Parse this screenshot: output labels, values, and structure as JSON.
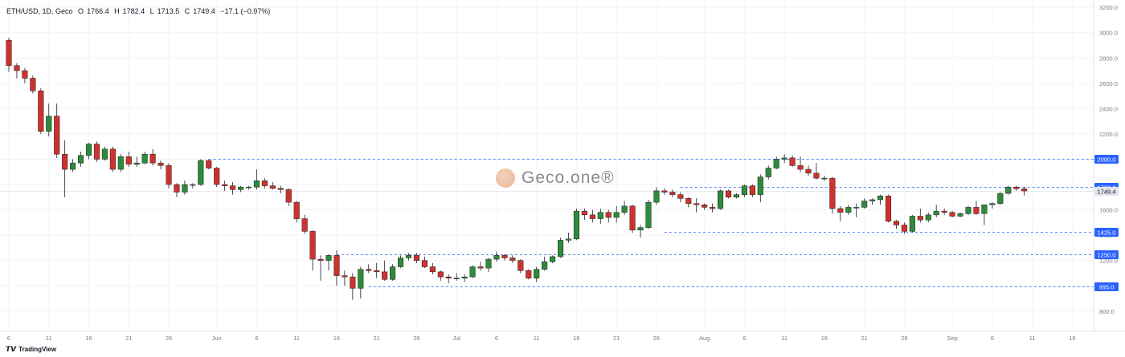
{
  "header": {
    "symbol": "ETH/USD, 1D, Geco",
    "o_label": "O",
    "o": "1766.4",
    "h_label": "H",
    "h": "1782.4",
    "l_label": "L",
    "l": "1713.5",
    "c_label": "C",
    "c": "1749.4",
    "change": "−17.1 (−0.97%)"
  },
  "watermark": {
    "text": "Geco.one®"
  },
  "footer": {
    "brand": "TradingView",
    "brand_icon": "tradingview-logo-icon"
  },
  "colors": {
    "up": "#2e8b3a",
    "down": "#d0312d",
    "level_line": "#2962ff",
    "last_price_bg": "#e0e3eb"
  },
  "chart_data": {
    "type": "candlestick",
    "title": "",
    "ylim": [
      640,
      3220
    ],
    "y_ticks": [
      800,
      1000,
      1200,
      1400,
      1600,
      1800,
      2000,
      2200,
      2400,
      2600,
      2800,
      3000,
      3200
    ],
    "y_tick_labels": [
      "800.0",
      "1000.0",
      "1200.0",
      "1400.0",
      "1600.0",
      "1800.0",
      "2000.0",
      "2200.0",
      "2400.0",
      "2600.0",
      "2800.0",
      "3000.0",
      "3200.0"
    ],
    "x_tick_labels": [
      {
        "label": "6",
        "i": 0
      },
      {
        "label": "11",
        "i": 5
      },
      {
        "label": "16",
        "i": 10
      },
      {
        "label": "21",
        "i": 15
      },
      {
        "label": "26",
        "i": 20
      },
      {
        "label": "Jun",
        "i": 26
      },
      {
        "label": "6",
        "i": 31
      },
      {
        "label": "11",
        "i": 36
      },
      {
        "label": "16",
        "i": 41
      },
      {
        "label": "21",
        "i": 46
      },
      {
        "label": "26",
        "i": 51
      },
      {
        "label": "Jul",
        "i": 56
      },
      {
        "label": "6",
        "i": 61
      },
      {
        "label": "11",
        "i": 66
      },
      {
        "label": "16",
        "i": 71
      },
      {
        "label": "21",
        "i": 76
      },
      {
        "label": "26",
        "i": 81
      },
      {
        "label": "Aug",
        "i": 87
      },
      {
        "label": "6",
        "i": 92
      },
      {
        "label": "11",
        "i": 97
      },
      {
        "label": "16",
        "i": 102
      },
      {
        "label": "21",
        "i": 107
      },
      {
        "label": "26",
        "i": 112
      },
      {
        "label": "Sep",
        "i": 118
      },
      {
        "label": "6",
        "i": 123
      },
      {
        "label": "11",
        "i": 128
      },
      {
        "label": "16",
        "i": 133
      }
    ],
    "levels": [
      {
        "value": 2000.0,
        "label": "2000.0",
        "start_i": 25
      },
      {
        "value": 1780.0,
        "label": "1780.0",
        "start_i": 84
      },
      {
        "value": 1425.0,
        "label": "1425.0",
        "start_i": 82
      },
      {
        "value": 1250.0,
        "label": "1250.0",
        "start_i": 41
      },
      {
        "value": 995.0,
        "label": "995.0",
        "start_i": 45
      }
    ],
    "last_price": {
      "value": 1749.4,
      "label": "1749.4"
    },
    "candles": [
      {
        "o": 2940,
        "h": 2960,
        "l": 2690,
        "c": 2740
      },
      {
        "o": 2740,
        "h": 2760,
        "l": 2640,
        "c": 2700
      },
      {
        "o": 2700,
        "h": 2720,
        "l": 2600,
        "c": 2640
      },
      {
        "o": 2640,
        "h": 2660,
        "l": 2520,
        "c": 2540
      },
      {
        "o": 2540,
        "h": 2560,
        "l": 2200,
        "c": 2220
      },
      {
        "o": 2220,
        "h": 2440,
        "l": 2180,
        "c": 2340
      },
      {
        "o": 2340,
        "h": 2440,
        "l": 2010,
        "c": 2040
      },
      {
        "o": 2040,
        "h": 2150,
        "l": 1700,
        "c": 1920
      },
      {
        "o": 1920,
        "h": 2000,
        "l": 1900,
        "c": 1970
      },
      {
        "o": 1970,
        "h": 2060,
        "l": 1940,
        "c": 2030
      },
      {
        "o": 2030,
        "h": 2130,
        "l": 2000,
        "c": 2120
      },
      {
        "o": 2120,
        "h": 2140,
        "l": 1980,
        "c": 2000
      },
      {
        "o": 2000,
        "h": 2100,
        "l": 1990,
        "c": 2080
      },
      {
        "o": 2080,
        "h": 2100,
        "l": 1900,
        "c": 1920
      },
      {
        "o": 1920,
        "h": 2040,
        "l": 1900,
        "c": 2020
      },
      {
        "o": 2020,
        "h": 2060,
        "l": 1940,
        "c": 1960
      },
      {
        "o": 1960,
        "h": 2020,
        "l": 1940,
        "c": 1970
      },
      {
        "o": 1970,
        "h": 2060,
        "l": 1960,
        "c": 2040
      },
      {
        "o": 2040,
        "h": 2080,
        "l": 1950,
        "c": 1970
      },
      {
        "o": 1970,
        "h": 1990,
        "l": 1920,
        "c": 1950
      },
      {
        "o": 1950,
        "h": 1970,
        "l": 1770,
        "c": 1800
      },
      {
        "o": 1800,
        "h": 1810,
        "l": 1700,
        "c": 1740
      },
      {
        "o": 1740,
        "h": 1830,
        "l": 1720,
        "c": 1800
      },
      {
        "o": 1800,
        "h": 1810,
        "l": 1770,
        "c": 1800
      },
      {
        "o": 1800,
        "h": 2000,
        "l": 1790,
        "c": 1990
      },
      {
        "o": 1990,
        "h": 2000,
        "l": 1920,
        "c": 1930
      },
      {
        "o": 1930,
        "h": 1940,
        "l": 1780,
        "c": 1800
      },
      {
        "o": 1800,
        "h": 1830,
        "l": 1750,
        "c": 1790
      },
      {
        "o": 1790,
        "h": 1820,
        "l": 1720,
        "c": 1760
      },
      {
        "o": 1760,
        "h": 1790,
        "l": 1740,
        "c": 1780
      },
      {
        "o": 1780,
        "h": 1790,
        "l": 1760,
        "c": 1780
      },
      {
        "o": 1780,
        "h": 1920,
        "l": 1760,
        "c": 1830
      },
      {
        "o": 1830,
        "h": 1850,
        "l": 1770,
        "c": 1790
      },
      {
        "o": 1790,
        "h": 1820,
        "l": 1760,
        "c": 1770
      },
      {
        "o": 1770,
        "h": 1790,
        "l": 1730,
        "c": 1760
      },
      {
        "o": 1760,
        "h": 1770,
        "l": 1630,
        "c": 1660
      },
      {
        "o": 1660,
        "h": 1670,
        "l": 1500,
        "c": 1530
      },
      {
        "o": 1530,
        "h": 1560,
        "l": 1410,
        "c": 1430
      },
      {
        "o": 1430,
        "h": 1440,
        "l": 1120,
        "c": 1210
      },
      {
        "o": 1210,
        "h": 1240,
        "l": 1040,
        "c": 1200
      },
      {
        "o": 1200,
        "h": 1250,
        "l": 1120,
        "c": 1240
      },
      {
        "o": 1240,
        "h": 1280,
        "l": 1000,
        "c": 1080
      },
      {
        "o": 1080,
        "h": 1120,
        "l": 1000,
        "c": 1070
      },
      {
        "o": 1070,
        "h": 1100,
        "l": 890,
        "c": 980
      },
      {
        "o": 980,
        "h": 1150,
        "l": 900,
        "c": 1130
      },
      {
        "o": 1130,
        "h": 1170,
        "l": 1100,
        "c": 1120
      },
      {
        "o": 1120,
        "h": 1180,
        "l": 1060,
        "c": 1110
      },
      {
        "o": 1110,
        "h": 1200,
        "l": 1040,
        "c": 1050
      },
      {
        "o": 1050,
        "h": 1170,
        "l": 1040,
        "c": 1150
      },
      {
        "o": 1150,
        "h": 1240,
        "l": 1140,
        "c": 1220
      },
      {
        "o": 1220,
        "h": 1260,
        "l": 1200,
        "c": 1240
      },
      {
        "o": 1240,
        "h": 1260,
        "l": 1180,
        "c": 1200
      },
      {
        "o": 1200,
        "h": 1230,
        "l": 1140,
        "c": 1150
      },
      {
        "o": 1150,
        "h": 1180,
        "l": 1090,
        "c": 1110
      },
      {
        "o": 1110,
        "h": 1120,
        "l": 1040,
        "c": 1070
      },
      {
        "o": 1070,
        "h": 1090,
        "l": 1020,
        "c": 1060
      },
      {
        "o": 1060,
        "h": 1100,
        "l": 1040,
        "c": 1060
      },
      {
        "o": 1060,
        "h": 1090,
        "l": 1030,
        "c": 1070
      },
      {
        "o": 1070,
        "h": 1160,
        "l": 1060,
        "c": 1150
      },
      {
        "o": 1150,
        "h": 1190,
        "l": 1120,
        "c": 1140
      },
      {
        "o": 1140,
        "h": 1220,
        "l": 1110,
        "c": 1210
      },
      {
        "o": 1210,
        "h": 1270,
        "l": 1190,
        "c": 1240
      },
      {
        "o": 1240,
        "h": 1250,
        "l": 1200,
        "c": 1220
      },
      {
        "o": 1220,
        "h": 1240,
        "l": 1180,
        "c": 1200
      },
      {
        "o": 1200,
        "h": 1210,
        "l": 1100,
        "c": 1120
      },
      {
        "o": 1120,
        "h": 1130,
        "l": 1050,
        "c": 1060
      },
      {
        "o": 1060,
        "h": 1150,
        "l": 1030,
        "c": 1130
      },
      {
        "o": 1130,
        "h": 1230,
        "l": 1120,
        "c": 1190
      },
      {
        "o": 1190,
        "h": 1240,
        "l": 1180,
        "c": 1230
      },
      {
        "o": 1230,
        "h": 1380,
        "l": 1220,
        "c": 1360
      },
      {
        "o": 1360,
        "h": 1420,
        "l": 1340,
        "c": 1370
      },
      {
        "o": 1370,
        "h": 1610,
        "l": 1360,
        "c": 1590
      },
      {
        "o": 1590,
        "h": 1610,
        "l": 1520,
        "c": 1560
      },
      {
        "o": 1560,
        "h": 1600,
        "l": 1500,
        "c": 1530
      },
      {
        "o": 1530,
        "h": 1610,
        "l": 1490,
        "c": 1580
      },
      {
        "o": 1580,
        "h": 1600,
        "l": 1500,
        "c": 1540
      },
      {
        "o": 1540,
        "h": 1630,
        "l": 1500,
        "c": 1580
      },
      {
        "o": 1580,
        "h": 1670,
        "l": 1560,
        "c": 1630
      },
      {
        "o": 1630,
        "h": 1640,
        "l": 1420,
        "c": 1440
      },
      {
        "o": 1440,
        "h": 1480,
        "l": 1380,
        "c": 1460
      },
      {
        "o": 1460,
        "h": 1680,
        "l": 1450,
        "c": 1660
      },
      {
        "o": 1660,
        "h": 1780,
        "l": 1640,
        "c": 1750
      },
      {
        "o": 1750,
        "h": 1770,
        "l": 1720,
        "c": 1740
      },
      {
        "o": 1740,
        "h": 1760,
        "l": 1700,
        "c": 1720
      },
      {
        "o": 1720,
        "h": 1740,
        "l": 1660,
        "c": 1690
      },
      {
        "o": 1690,
        "h": 1700,
        "l": 1620,
        "c": 1650
      },
      {
        "o": 1650,
        "h": 1690,
        "l": 1580,
        "c": 1640
      },
      {
        "o": 1640,
        "h": 1650,
        "l": 1600,
        "c": 1620
      },
      {
        "o": 1620,
        "h": 1650,
        "l": 1580,
        "c": 1610
      },
      {
        "o": 1610,
        "h": 1760,
        "l": 1600,
        "c": 1750
      },
      {
        "o": 1750,
        "h": 1760,
        "l": 1690,
        "c": 1700
      },
      {
        "o": 1700,
        "h": 1730,
        "l": 1690,
        "c": 1720
      },
      {
        "o": 1720,
        "h": 1800,
        "l": 1700,
        "c": 1790
      },
      {
        "o": 1790,
        "h": 1800,
        "l": 1700,
        "c": 1720
      },
      {
        "o": 1720,
        "h": 1880,
        "l": 1660,
        "c": 1860
      },
      {
        "o": 1860,
        "h": 1950,
        "l": 1840,
        "c": 1930
      },
      {
        "o": 1930,
        "h": 2020,
        "l": 1920,
        "c": 2000
      },
      {
        "o": 2000,
        "h": 2040,
        "l": 1970,
        "c": 2010
      },
      {
        "o": 2010,
        "h": 2030,
        "l": 1940,
        "c": 1950
      },
      {
        "o": 1950,
        "h": 2020,
        "l": 1900,
        "c": 1920
      },
      {
        "o": 1920,
        "h": 1950,
        "l": 1870,
        "c": 1890
      },
      {
        "o": 1890,
        "h": 1970,
        "l": 1840,
        "c": 1850
      },
      {
        "o": 1850,
        "h": 1870,
        "l": 1830,
        "c": 1850
      },
      {
        "o": 1850,
        "h": 1860,
        "l": 1570,
        "c": 1610
      },
      {
        "o": 1610,
        "h": 1630,
        "l": 1510,
        "c": 1580
      },
      {
        "o": 1580,
        "h": 1640,
        "l": 1560,
        "c": 1620
      },
      {
        "o": 1620,
        "h": 1650,
        "l": 1540,
        "c": 1620
      },
      {
        "o": 1620,
        "h": 1690,
        "l": 1610,
        "c": 1670
      },
      {
        "o": 1670,
        "h": 1690,
        "l": 1640,
        "c": 1680
      },
      {
        "o": 1680,
        "h": 1720,
        "l": 1640,
        "c": 1710
      },
      {
        "o": 1710,
        "h": 1720,
        "l": 1500,
        "c": 1510
      },
      {
        "o": 1510,
        "h": 1520,
        "l": 1450,
        "c": 1480
      },
      {
        "o": 1480,
        "h": 1500,
        "l": 1410,
        "c": 1430
      },
      {
        "o": 1430,
        "h": 1560,
        "l": 1420,
        "c": 1550
      },
      {
        "o": 1550,
        "h": 1610,
        "l": 1500,
        "c": 1520
      },
      {
        "o": 1520,
        "h": 1580,
        "l": 1500,
        "c": 1560
      },
      {
        "o": 1560,
        "h": 1640,
        "l": 1540,
        "c": 1590
      },
      {
        "o": 1590,
        "h": 1610,
        "l": 1560,
        "c": 1580
      },
      {
        "o": 1580,
        "h": 1590,
        "l": 1540,
        "c": 1550
      },
      {
        "o": 1550,
        "h": 1580,
        "l": 1540,
        "c": 1570
      },
      {
        "o": 1570,
        "h": 1630,
        "l": 1560,
        "c": 1620
      },
      {
        "o": 1620,
        "h": 1670,
        "l": 1560,
        "c": 1570
      },
      {
        "o": 1570,
        "h": 1640,
        "l": 1480,
        "c": 1640
      },
      {
        "o": 1640,
        "h": 1660,
        "l": 1610,
        "c": 1650
      },
      {
        "o": 1650,
        "h": 1740,
        "l": 1640,
        "c": 1730
      },
      {
        "o": 1730,
        "h": 1790,
        "l": 1720,
        "c": 1780
      },
      {
        "o": 1780,
        "h": 1790,
        "l": 1750,
        "c": 1766.4
      },
      {
        "o": 1766.4,
        "h": 1782.4,
        "l": 1713.5,
        "c": 1749.4
      }
    ]
  }
}
